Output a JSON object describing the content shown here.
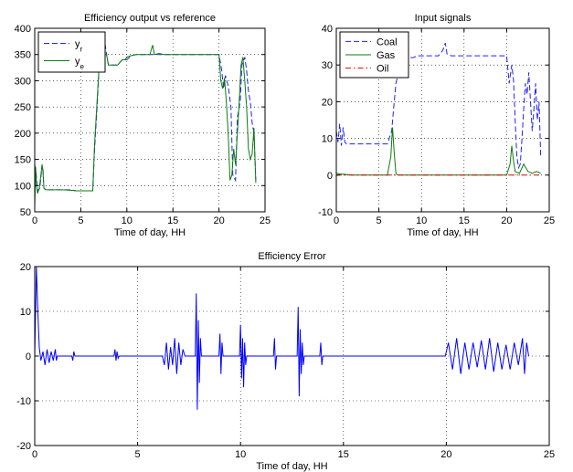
{
  "colors": {
    "series_blue": "#2121ff",
    "series_green": "#0b7d0b",
    "series_red": "#e00000",
    "grid": "#000000"
  },
  "chart_data": [
    {
      "id": "eff",
      "type": "line",
      "title": "Efficiency output vs reference",
      "xlabel": "Time of day, HH",
      "ylabel": "",
      "xlim": [
        0,
        25
      ],
      "ylim": [
        50,
        400
      ],
      "xticks": [
        0,
        5,
        10,
        15,
        20,
        25
      ],
      "yticks": [
        50,
        100,
        150,
        200,
        250,
        300,
        350,
        400
      ],
      "grid": true,
      "legend_position": "top-left",
      "series": [
        {
          "name": "y",
          "subscript": "r",
          "color": "#2121ff",
          "dash": "dashed",
          "x": [
            0,
            0.15,
            0.3,
            0.55,
            0.7,
            0.8,
            0.9,
            1.0,
            1.2,
            1.5,
            2.0,
            3.0,
            4.0,
            4.5,
            5.0,
            5.5,
            6.0,
            6.3,
            6.5,
            6.8,
            7.0,
            7.3,
            7.5,
            7.6,
            7.8,
            8.0,
            8.5,
            9.0,
            9.5,
            9.8,
            10.0,
            10.5,
            11.0,
            11.5,
            12.0,
            12.5,
            12.8,
            13.0,
            13.5,
            14.0,
            15.0,
            16.0,
            17.0,
            18.0,
            19.0,
            20.0,
            20.3,
            20.5,
            20.7,
            21.0,
            21.3,
            21.5,
            21.8,
            22.0,
            22.3,
            22.5,
            22.8,
            23.0,
            23.2,
            23.4,
            23.6,
            23.8,
            24.0
          ],
          "y": [
            140,
            125,
            90,
            95,
            120,
            140,
            130,
            95,
            92,
            92,
            92,
            92,
            92,
            90,
            90,
            90,
            90,
            90,
            170,
            260,
            330,
            345,
            355,
            375,
            350,
            330,
            330,
            330,
            340,
            340,
            340,
            348,
            350,
            350,
            350,
            350,
            350,
            350,
            350,
            350,
            350,
            350,
            350,
            350,
            350,
            350,
            320,
            285,
            310,
            290,
            250,
            120,
            110,
            230,
            260,
            330,
            345,
            320,
            280,
            260,
            220,
            200,
            110
          ]
        },
        {
          "name": "y",
          "subscript": "e",
          "color": "#0b7d0b",
          "dash": "solid",
          "x": [
            0,
            0.1,
            0.2,
            0.3,
            0.5,
            0.7,
            0.8,
            0.9,
            1.0,
            1.2,
            1.5,
            2.0,
            3.0,
            4.0,
            4.5,
            5.0,
            5.5,
            6.0,
            6.3,
            6.5,
            6.8,
            7.0,
            7.2,
            7.5,
            7.8,
            8.0,
            8.5,
            9.0,
            9.5,
            9.8,
            10.0,
            10.5,
            11.0,
            11.5,
            12.0,
            12.5,
            12.8,
            13.0,
            13.5,
            14.0,
            15.0,
            16.0,
            17.0,
            18.0,
            19.0,
            20.0,
            20.2,
            20.4,
            20.6,
            20.8,
            21.0,
            21.2,
            21.4,
            21.6,
            21.8,
            22.0,
            22.2,
            22.4,
            22.6,
            22.8,
            23.0,
            23.2,
            23.4,
            23.6,
            23.8,
            24.0
          ],
          "y": [
            60,
            135,
            100,
            85,
            95,
            125,
            140,
            125,
            95,
            92,
            92,
            92,
            92,
            91,
            90,
            90,
            90,
            90,
            90,
            180,
            270,
            330,
            345,
            350,
            350,
            330,
            330,
            330,
            340,
            340,
            345,
            348,
            350,
            350,
            350,
            350,
            368,
            350,
            352,
            350,
            350,
            350,
            350,
            350,
            350,
            350,
            300,
            285,
            305,
            260,
            200,
            110,
            120,
            170,
            140,
            200,
            260,
            330,
            345,
            300,
            250,
            170,
            150,
            160,
            210,
            105
          ]
        }
      ]
    },
    {
      "id": "inp",
      "type": "line",
      "title": "Input signals",
      "xlabel": "Time of day, HH",
      "ylabel": "",
      "xlim": [
        0,
        25
      ],
      "ylim": [
        -10,
        40
      ],
      "xticks": [
        0,
        5,
        10,
        15,
        20,
        25
      ],
      "yticks": [
        -10,
        0,
        10,
        20,
        30,
        40
      ],
      "grid": true,
      "legend_position": "top-left",
      "series": [
        {
          "name": "Coal",
          "color": "#2121ff",
          "dash": "dashed",
          "x": [
            0,
            0.2,
            0.4,
            0.6,
            0.8,
            1.0,
            1.2,
            1.5,
            2.0,
            3.0,
            4.0,
            5.0,
            6.0,
            6.5,
            6.8,
            7.0,
            7.3,
            7.5,
            7.8,
            8.0,
            8.5,
            9.0,
            9.5,
            10.0,
            11.0,
            12.0,
            12.5,
            12.8,
            13.0,
            13.5,
            14.0,
            15.0,
            16.0,
            17.0,
            18.0,
            19.0,
            20.0,
            20.3,
            20.6,
            20.8,
            21.0,
            21.2,
            21.4,
            21.6,
            21.8,
            22.0,
            22.2,
            22.4,
            22.6,
            22.8,
            23.0,
            23.2,
            23.4,
            23.6,
            23.8,
            24.0
          ],
          "y": [
            12,
            9,
            14,
            8,
            13,
            9,
            8.5,
            8.5,
            8.5,
            8.5,
            8.5,
            8.5,
            8.5,
            12,
            20,
            25,
            28,
            30,
            31,
            31.5,
            32,
            32,
            32.5,
            32.5,
            32.5,
            32.5,
            34,
            36,
            33,
            32.5,
            32.5,
            32.5,
            32.5,
            32.5,
            32.5,
            32.5,
            32.5,
            25,
            30,
            26,
            15,
            5,
            2,
            3,
            10,
            18,
            25,
            22,
            28,
            20,
            12,
            18,
            25,
            15,
            20,
            5
          ]
        },
        {
          "name": "Gas",
          "color": "#0b7d0b",
          "dash": "solid",
          "x": [
            0,
            0.5,
            1.0,
            2.0,
            3.0,
            4.0,
            5.0,
            6.0,
            6.4,
            6.6,
            6.8,
            7.0,
            7.2,
            8.0,
            9.0,
            10.0,
            11.0,
            12.0,
            13.0,
            14.0,
            15.0,
            16.0,
            17.0,
            18.0,
            19.0,
            20.0,
            20.4,
            20.6,
            20.8,
            21.0,
            21.5,
            22.0,
            22.5,
            23.0,
            23.5,
            24.0
          ],
          "y": [
            0.5,
            0.3,
            0.2,
            0,
            0,
            0,
            0,
            0,
            5,
            13,
            6,
            0.5,
            0,
            0,
            0,
            0,
            0,
            0,
            0,
            0,
            0,
            0,
            0,
            0,
            0,
            0,
            3,
            8,
            4,
            1,
            0.5,
            3,
            1,
            0.5,
            1,
            0.5
          ]
        },
        {
          "name": "Oil",
          "color": "#e00000",
          "dash": "dashdot",
          "x": [
            0,
            24
          ],
          "y": [
            0,
            0
          ]
        }
      ]
    },
    {
      "id": "err",
      "type": "line",
      "title": "Efficiency Error",
      "xlabel": "Time of day, HH",
      "ylabel": "",
      "xlim": [
        0,
        25
      ],
      "ylim": [
        -20,
        20
      ],
      "xticks": [
        0,
        5,
        10,
        15,
        20,
        25
      ],
      "yticks": [
        -20,
        -10,
        0,
        10,
        20
      ],
      "grid": true,
      "legend_position": "none",
      "series": [
        {
          "name": "",
          "color": "#0000ff",
          "dash": "solid",
          "x": [
            0,
            0.08,
            0.15,
            0.22,
            0.3,
            0.4,
            0.5,
            0.6,
            0.7,
            0.8,
            0.9,
            1.0,
            1.05,
            1.1,
            1.2,
            1.8,
            1.85,
            1.9,
            1.95,
            2.0,
            3.0,
            3.85,
            3.9,
            3.95,
            4.0,
            4.05,
            4.1,
            5.0,
            6.2,
            6.3,
            6.4,
            6.5,
            6.6,
            6.7,
            6.8,
            6.9,
            7.0,
            7.1,
            7.2,
            7.3,
            7.5,
            7.8,
            7.85,
            7.9,
            7.95,
            8.0,
            8.05,
            8.1,
            8.5,
            8.95,
            9.0,
            9.05,
            9.1,
            9.15,
            9.5,
            9.95,
            10.0,
            10.05,
            10.1,
            10.15,
            10.2,
            10.25,
            10.3,
            11.0,
            11.6,
            11.65,
            11.7,
            11.75,
            12.0,
            12.75,
            12.8,
            12.85,
            12.9,
            12.95,
            13.0,
            13.05,
            13.1,
            13.5,
            13.85,
            13.9,
            13.95,
            14.0,
            15.0,
            16.0,
            17.0,
            18.0,
            19.0,
            19.95,
            20.1,
            20.3,
            20.5,
            20.7,
            20.9,
            21.1,
            21.3,
            21.5,
            21.7,
            21.9,
            22.1,
            22.3,
            22.5,
            22.7,
            22.9,
            23.1,
            23.3,
            23.5,
            23.7,
            23.8,
            23.9,
            24.0
          ],
          "y": [
            0,
            20,
            10,
            2,
            -1,
            1,
            -2,
            1.5,
            -1.5,
            1,
            -1,
            1.5,
            -1,
            0,
            0,
            0,
            -1,
            1,
            0,
            0,
            0,
            0,
            1.5,
            -1,
            1,
            -0.5,
            0,
            0,
            0,
            -2,
            3,
            -3,
            2,
            -2,
            4,
            -4,
            3,
            -2,
            1.5,
            0,
            0,
            0,
            14,
            -12,
            8,
            -6,
            4,
            0,
            0,
            0,
            5,
            -4,
            3,
            0,
            0,
            0,
            7,
            -5,
            4,
            -7,
            3,
            -2,
            0,
            0,
            0,
            4,
            -3,
            0,
            0,
            0,
            11,
            -9,
            6,
            -4,
            3,
            -2,
            0,
            0,
            0,
            3,
            -2,
            0,
            0,
            0,
            0,
            0,
            0,
            0,
            3,
            -3,
            4,
            -4,
            3,
            -3,
            3,
            -2.5,
            3.5,
            -3,
            4,
            -3.5,
            3,
            -3,
            2.5,
            -3,
            3,
            -2,
            4,
            -4,
            3,
            0
          ]
        }
      ]
    }
  ]
}
